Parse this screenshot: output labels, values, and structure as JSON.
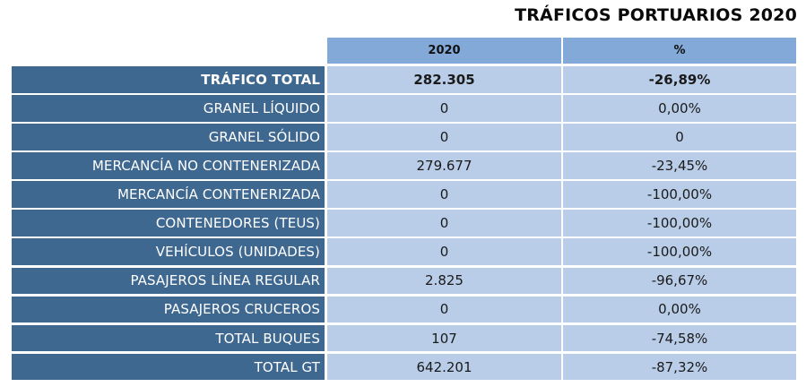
{
  "title": "TRÁFICOS PORTUARIOS 2020",
  "columns": [
    "2020",
    "%"
  ],
  "colors": {
    "header_bg": "#82a9d7",
    "label_bg": "#3f6890",
    "cell_bg": "#b9cde8"
  },
  "rows": [
    {
      "label": "TRÁFICO TOTAL",
      "value_2020": "282.305",
      "pct": "-26,89%"
    },
    {
      "label": "GRANEL LÍQUIDO",
      "value_2020": "0",
      "pct": "0,00%"
    },
    {
      "label": "GRANEL SÓLIDO",
      "value_2020": "0",
      "pct": "0"
    },
    {
      "label": "MERCANCÍA NO CONTENERIZADA",
      "value_2020": "279.677",
      "pct": "-23,45%"
    },
    {
      "label": "MERCANCÍA CONTENERIZADA",
      "value_2020": "0",
      "pct": "-100,00%"
    },
    {
      "label": "CONTENEDORES (TEUS)",
      "value_2020": "0",
      "pct": "-100,00%"
    },
    {
      "label": "VEHÍCULOS (UNIDADES)",
      "value_2020": "0",
      "pct": "-100,00%"
    },
    {
      "label": "PASAJEROS LÍNEA REGULAR",
      "value_2020": "2.825",
      "pct": "-96,67%"
    },
    {
      "label": "PASAJEROS CRUCEROS",
      "value_2020": "0",
      "pct": "0,00%"
    },
    {
      "label": "TOTAL BUQUES",
      "value_2020": "107",
      "pct": "-74,58%"
    },
    {
      "label": "TOTAL GT",
      "value_2020": "642.201",
      "pct": "-87,32%"
    }
  ]
}
